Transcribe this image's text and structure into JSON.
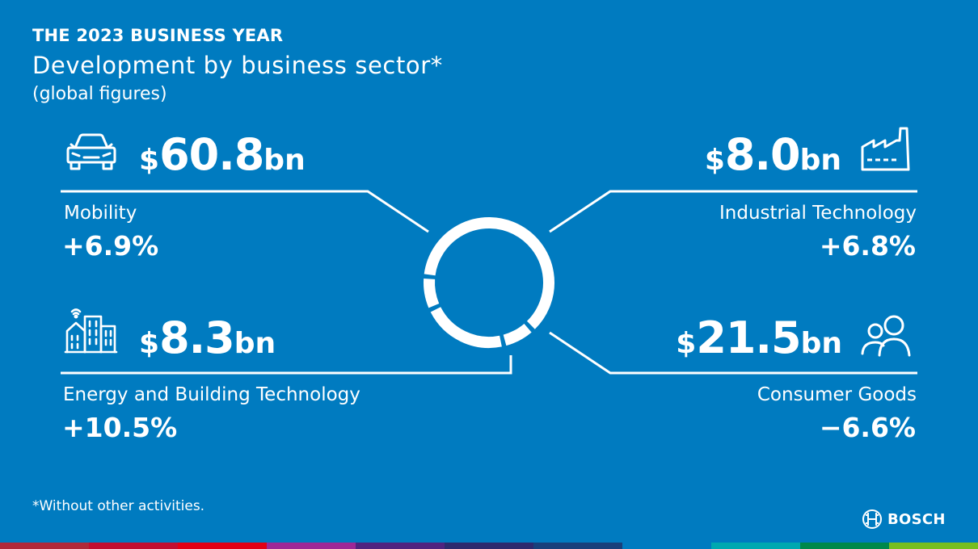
{
  "header": {
    "eyebrow": "THE 2023 BUSINESS YEAR",
    "title": "Development by business sector*",
    "subtitle": "(global figures)"
  },
  "chart_data": {
    "type": "pie",
    "variant": "donut",
    "currency": "$",
    "unit": "bn",
    "categories": [
      "Mobility",
      "Industrial Technology",
      "Consumer Goods",
      "Energy and Building Technology"
    ],
    "values": [
      60.8,
      8.0,
      21.5,
      8.3
    ],
    "value_labels": [
      "60.8",
      "8.0",
      "21.5",
      "8.3"
    ],
    "changes": [
      "+6.9%",
      "+6.8%",
      "−6.6%",
      "+10.5%"
    ],
    "icons": [
      "car-icon",
      "factory-icon",
      "people-icon",
      "buildings-icon"
    ]
  },
  "footnote": "*Without other activities.",
  "logo": {
    "text": "BOSCH",
    "icon": "bosch-armature-icon"
  },
  "colors": {
    "background": "#007bc0",
    "foreground": "#ffffff",
    "stripe": [
      "#b12939",
      "#c20e2f",
      "#e20015",
      "#9e2896",
      "#50237f",
      "#2d2a6e",
      "#18407b",
      "#007bc0",
      "#00a8b0",
      "#00884a",
      "#78be20"
    ]
  }
}
